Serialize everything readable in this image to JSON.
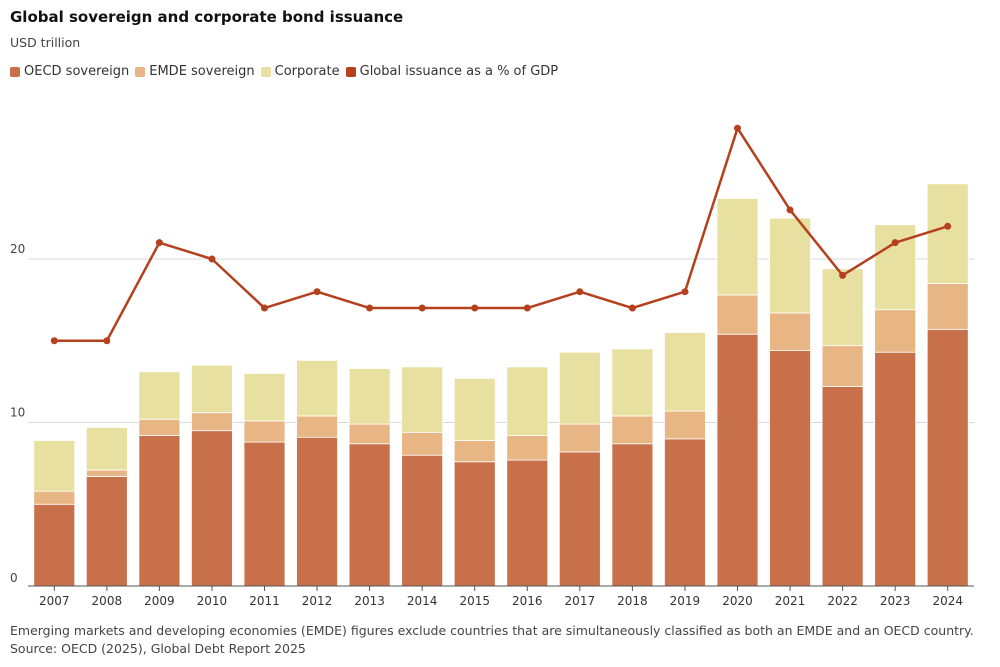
{
  "title": "Global sovereign and corporate bond issuance",
  "subtitle": "USD trillion",
  "legend": [
    {
      "label": "OECD sovereign",
      "color": "#c8704a"
    },
    {
      "label": "EMDE sovereign",
      "color": "#e8b584"
    },
    {
      "label": "Corporate",
      "color": "#e8e0a0"
    },
    {
      "label": "Global issuance as a % of GDP",
      "color": "#b5401e"
    }
  ],
  "footnote": {
    "line1": "Emerging markets and developing economies (EMDE) figures exclude countries that are simultaneously classified as both an EMDE and an OECD country.",
    "line2": "Source: OECD (2025), Global Debt Report 2025"
  },
  "chart_data": {
    "type": "bar",
    "stacked": true,
    "categories": [
      "2007",
      "2008",
      "2009",
      "2010",
      "2011",
      "2012",
      "2013",
      "2014",
      "2015",
      "2016",
      "2017",
      "2018",
      "2019",
      "2020",
      "2021",
      "2022",
      "2023",
      "2024"
    ],
    "series": [
      {
        "name": "OECD sovereign",
        "color": "#c8704a",
        "values": [
          5.0,
          6.7,
          9.2,
          9.5,
          8.8,
          9.1,
          8.7,
          8.0,
          7.6,
          7.7,
          8.2,
          8.7,
          9.0,
          15.4,
          14.4,
          12.2,
          14.3,
          15.7
        ]
      },
      {
        "name": "EMDE sovereign",
        "color": "#e8b584",
        "values": [
          0.8,
          0.4,
          1.0,
          1.1,
          1.3,
          1.3,
          1.2,
          1.4,
          1.3,
          1.5,
          1.7,
          1.7,
          1.7,
          2.4,
          2.3,
          2.5,
          2.6,
          2.8
        ]
      },
      {
        "name": "Corporate",
        "color": "#e8e0a0",
        "values": [
          3.1,
          2.6,
          2.9,
          2.9,
          2.9,
          3.4,
          3.4,
          4.0,
          3.8,
          4.2,
          4.4,
          4.1,
          4.8,
          5.9,
          5.8,
          4.7,
          5.2,
          6.1
        ]
      },
      {
        "name": "Global issuance as a % of GDP",
        "color": "#b5401e",
        "type": "line",
        "values": [
          15,
          15,
          21,
          20,
          17,
          18,
          17,
          17,
          17,
          17,
          18,
          17,
          18,
          28,
          23,
          19,
          21,
          22
        ]
      }
    ],
    "yticks": [
      0,
      10,
      20
    ],
    "ylim": [
      0,
      30
    ],
    "grid": true,
    "legend_position": "top-left"
  }
}
